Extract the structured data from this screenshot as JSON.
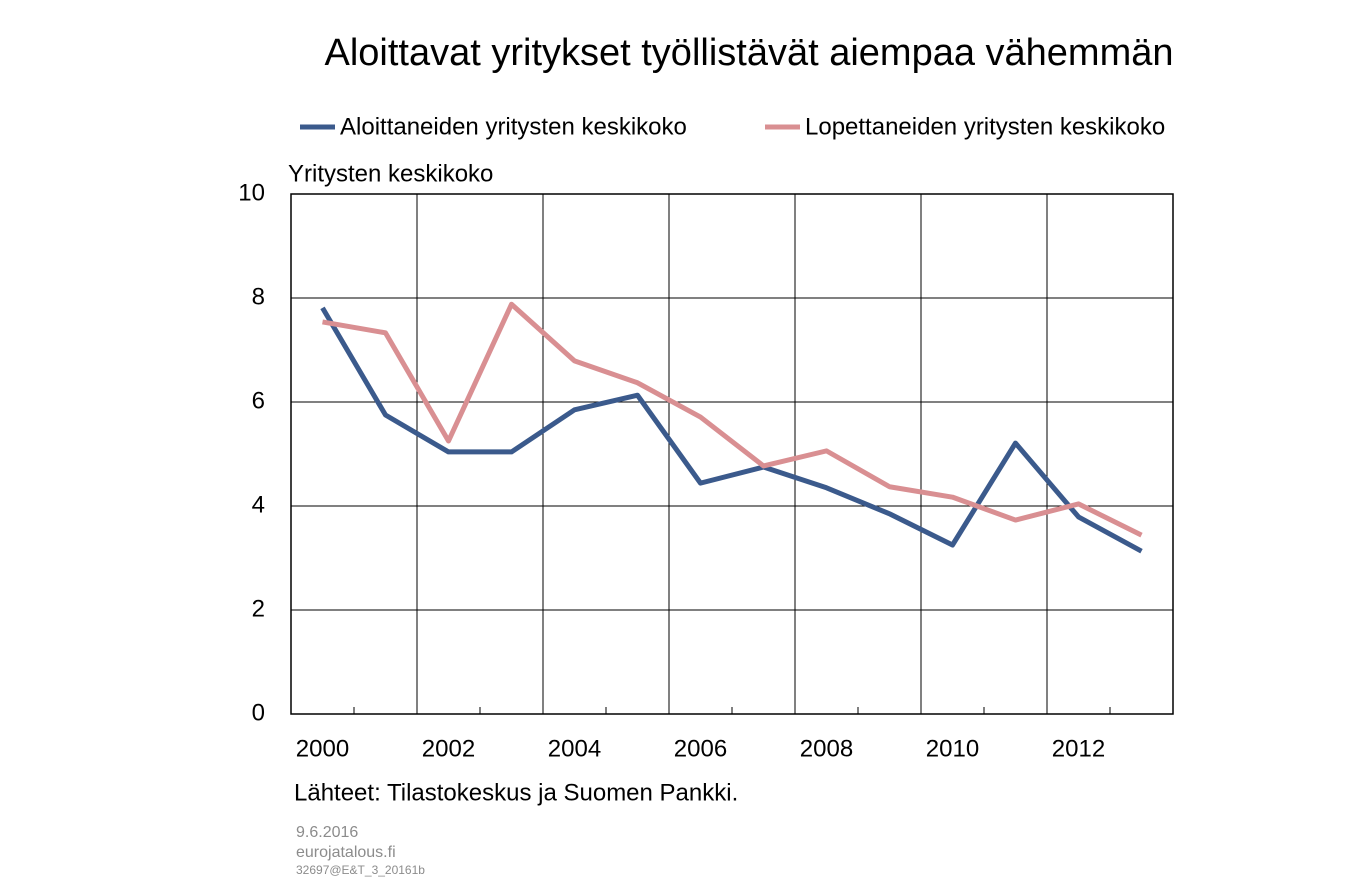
{
  "chart_data": {
    "type": "line",
    "title": "Aloittavat yritykset työllistävät aiempaa vähemmän",
    "y_label": "Yritysten keskikoko",
    "source": "Lähteet: Tilastokeskus ja Suomen Pankki.",
    "notes": [
      "9.6.2016",
      "eurojatalous.fi",
      "32697@E&T_3_20161b"
    ],
    "categories": [
      "2000",
      null,
      "2002",
      null,
      "2004",
      null,
      "2006",
      null,
      "2008",
      null,
      "2010",
      null,
      "2012",
      null
    ],
    "series": [
      {
        "name": "Aloittaneiden yritysten keskikoko",
        "color": "#3b5a8c",
        "values": [
          7.81,
          5.75,
          5.04,
          5.04,
          5.85,
          6.13,
          4.44,
          4.75,
          4.35,
          3.85,
          3.25,
          5.21,
          3.79,
          3.13
        ]
      },
      {
        "name": "Lopettaneiden yritysten keskikoko",
        "color": "#d98f92",
        "values": [
          7.54,
          7.33,
          5.25,
          7.88,
          6.79,
          6.37,
          5.71,
          4.77,
          5.06,
          4.37,
          4.17,
          3.73,
          4.04,
          3.44
        ]
      }
    ],
    "ylim": [
      0,
      10
    ],
    "yticks": [
      0,
      2,
      4,
      6,
      8,
      10
    ],
    "grid": true
  }
}
